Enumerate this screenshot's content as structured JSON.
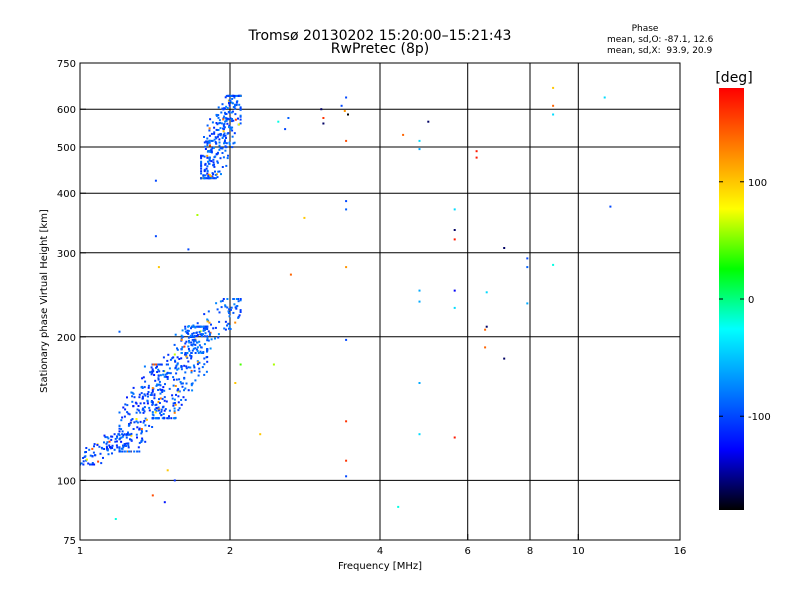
{
  "chart_data": {
    "type": "scatter",
    "title": "Tromsø 20130202 15:20:00–15:21:43",
    "subtitle": "RwPretec (8p)",
    "xlabel": "Frequency [MHz]",
    "ylabel": "Stationary phase Virtual Height [km]",
    "x_scale": "log",
    "y_scale": "log",
    "xlim": [
      1,
      16
    ],
    "ylim": [
      75,
      750
    ],
    "x_ticks": [
      1,
      2,
      4,
      6,
      8,
      10,
      16
    ],
    "y_ticks": [
      75,
      100,
      200,
      300,
      400,
      500,
      600,
      750
    ],
    "x_gridlines": [
      2,
      4,
      6,
      8,
      10
    ],
    "y_gridlines": [
      100,
      200,
      300,
      400,
      500,
      600
    ],
    "grid": true,
    "stats": {
      "heading": "Phase",
      "line_o": "mean, sd,O: -87.1, 12.6",
      "line_x": "mean, sd,X:  93.9, 20.9"
    },
    "colorbar": {
      "label": "[deg]",
      "range": [
        -180,
        180
      ],
      "ticks": [
        100,
        0,
        -100
      ],
      "colors": [
        "#ff0000",
        "#ff8000",
        "#ffff00",
        "#00ff00",
        "#00ffff",
        "#0080ff",
        "#0000ff",
        "#000000"
      ]
    },
    "clusters": [
      {
        "freq_range": [
          1.0,
          1.25
        ],
        "height_range": [
          108,
          125
        ],
        "count": 90,
        "phase": -100
      },
      {
        "freq_range": [
          1.2,
          1.5
        ],
        "height_range": [
          115,
          175
        ],
        "count": 220,
        "phase": -100
      },
      {
        "freq_range": [
          1.4,
          1.8
        ],
        "height_range": [
          135,
          210
        ],
        "count": 260,
        "phase": -95
      },
      {
        "freq_range": [
          1.6,
          2.1
        ],
        "height_range": [
          185,
          240
        ],
        "count": 120,
        "phase": -90
      },
      {
        "freq_range": [
          1.75,
          2.1
        ],
        "height_range": [
          430,
          640
        ],
        "count": 300,
        "phase": -95
      }
    ],
    "points": [
      {
        "x": 1.42,
        "y": 325,
        "phase": -100
      },
      {
        "x": 1.42,
        "y": 425,
        "phase": -100
      },
      {
        "x": 1.72,
        "y": 360,
        "phase": 60
      },
      {
        "x": 1.65,
        "y": 305,
        "phase": -100
      },
      {
        "x": 1.2,
        "y": 205,
        "phase": -90
      },
      {
        "x": 1.18,
        "y": 83,
        "phase": -20
      },
      {
        "x": 1.4,
        "y": 93,
        "phase": 150
      },
      {
        "x": 1.48,
        "y": 90,
        "phase": -120
      },
      {
        "x": 1.55,
        "y": 100,
        "phase": -110
      },
      {
        "x": 1.5,
        "y": 105,
        "phase": 100
      },
      {
        "x": 1.44,
        "y": 280,
        "phase": 100
      },
      {
        "x": 2.1,
        "y": 175,
        "phase": 40
      },
      {
        "x": 2.05,
        "y": 160,
        "phase": 100
      },
      {
        "x": 2.3,
        "y": 125,
        "phase": 100
      },
      {
        "x": 2.45,
        "y": 175,
        "phase": 60
      },
      {
        "x": 2.65,
        "y": 270,
        "phase": 140
      },
      {
        "x": 2.82,
        "y": 355,
        "phase": 100
      },
      {
        "x": 2.5,
        "y": 565,
        "phase": -20
      },
      {
        "x": 2.58,
        "y": 545,
        "phase": -100
      },
      {
        "x": 2.62,
        "y": 575,
        "phase": -90
      },
      {
        "x": 3.05,
        "y": 600,
        "phase": -160
      },
      {
        "x": 3.08,
        "y": 575,
        "phase": 160
      },
      {
        "x": 3.08,
        "y": 560,
        "phase": -160
      },
      {
        "x": 3.35,
        "y": 610,
        "phase": -100
      },
      {
        "x": 3.4,
        "y": 595,
        "phase": 120
      },
      {
        "x": 3.45,
        "y": 585,
        "phase": -180
      },
      {
        "x": 3.42,
        "y": 635,
        "phase": -100
      },
      {
        "x": 3.42,
        "y": 515,
        "phase": 150
      },
      {
        "x": 3.42,
        "y": 385,
        "phase": -100
      },
      {
        "x": 3.42,
        "y": 370,
        "phase": -90
      },
      {
        "x": 3.42,
        "y": 280,
        "phase": 120
      },
      {
        "x": 3.42,
        "y": 197,
        "phase": -100
      },
      {
        "x": 3.42,
        "y": 133,
        "phase": 160
      },
      {
        "x": 3.42,
        "y": 110,
        "phase": 160
      },
      {
        "x": 3.42,
        "y": 102,
        "phase": -100
      },
      {
        "x": 4.35,
        "y": 88,
        "phase": -20
      },
      {
        "x": 4.45,
        "y": 530,
        "phase": 140
      },
      {
        "x": 4.8,
        "y": 515,
        "phase": -40
      },
      {
        "x": 4.8,
        "y": 495,
        "phase": -60
      },
      {
        "x": 4.8,
        "y": 250,
        "phase": -60
      },
      {
        "x": 4.8,
        "y": 237,
        "phase": -60
      },
      {
        "x": 4.8,
        "y": 160,
        "phase": -60
      },
      {
        "x": 4.8,
        "y": 125,
        "phase": -40
      },
      {
        "x": 5.0,
        "y": 565,
        "phase": -160
      },
      {
        "x": 5.65,
        "y": 370,
        "phase": -40
      },
      {
        "x": 5.65,
        "y": 335,
        "phase": -160
      },
      {
        "x": 5.65,
        "y": 320,
        "phase": 170
      },
      {
        "x": 5.65,
        "y": 250,
        "phase": -130
      },
      {
        "x": 5.65,
        "y": 230,
        "phase": -40
      },
      {
        "x": 5.65,
        "y": 123,
        "phase": 170
      },
      {
        "x": 6.25,
        "y": 490,
        "phase": 170
      },
      {
        "x": 6.25,
        "y": 475,
        "phase": 170
      },
      {
        "x": 6.55,
        "y": 248,
        "phase": -40
      },
      {
        "x": 6.55,
        "y": 210,
        "phase": -160
      },
      {
        "x": 6.5,
        "y": 207,
        "phase": 140
      },
      {
        "x": 6.5,
        "y": 190,
        "phase": 140
      },
      {
        "x": 7.1,
        "y": 307,
        "phase": -160
      },
      {
        "x": 7.1,
        "y": 180,
        "phase": -160
      },
      {
        "x": 7.9,
        "y": 292,
        "phase": -100
      },
      {
        "x": 7.9,
        "y": 280,
        "phase": -90
      },
      {
        "x": 7.9,
        "y": 235,
        "phase": -60
      },
      {
        "x": 8.9,
        "y": 665,
        "phase": 100
      },
      {
        "x": 8.9,
        "y": 610,
        "phase": 140
      },
      {
        "x": 8.9,
        "y": 585,
        "phase": -40
      },
      {
        "x": 8.9,
        "y": 283,
        "phase": -20
      },
      {
        "x": 11.3,
        "y": 635,
        "phase": -40
      },
      {
        "x": 11.6,
        "y": 375,
        "phase": -100
      }
    ]
  }
}
